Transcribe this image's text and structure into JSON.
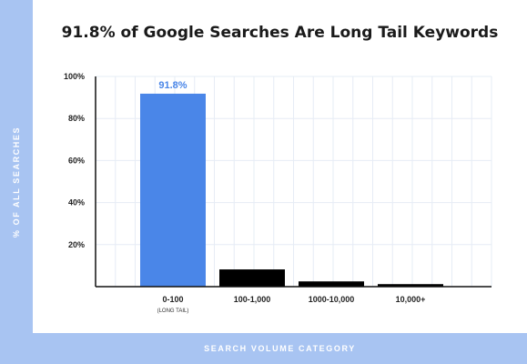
{
  "chart_data": {
    "type": "bar",
    "title": "91.8% of Google Searches Are Long Tail Keywords",
    "xlabel": "SEARCH VOLUME CATEGORY",
    "ylabel": "% OF ALL SEARCHES",
    "categories": [
      "0-100",
      "100-1,000",
      "1000-10,000",
      "10,000+"
    ],
    "category_sublabels": [
      "(LONG TAIL)",
      "",
      "",
      ""
    ],
    "values": [
      91.8,
      8.2,
      2.5,
      1.2
    ],
    "bar_colors": [
      "#4a86e8",
      "#000000",
      "#000000",
      "#000000"
    ],
    "data_labels": [
      "91.8%",
      "",
      "",
      ""
    ],
    "data_label_color": "#4a86e8",
    "ylim": [
      0,
      100
    ],
    "yticks": [
      20,
      40,
      60,
      80,
      100
    ],
    "ytick_labels": [
      "20%",
      "40%",
      "60%",
      "80%",
      "100%"
    ],
    "grid": true,
    "grid_color": "#e6ecf5"
  },
  "colors": {
    "band": "#a8c4f2",
    "panel": "#ffffff"
  }
}
